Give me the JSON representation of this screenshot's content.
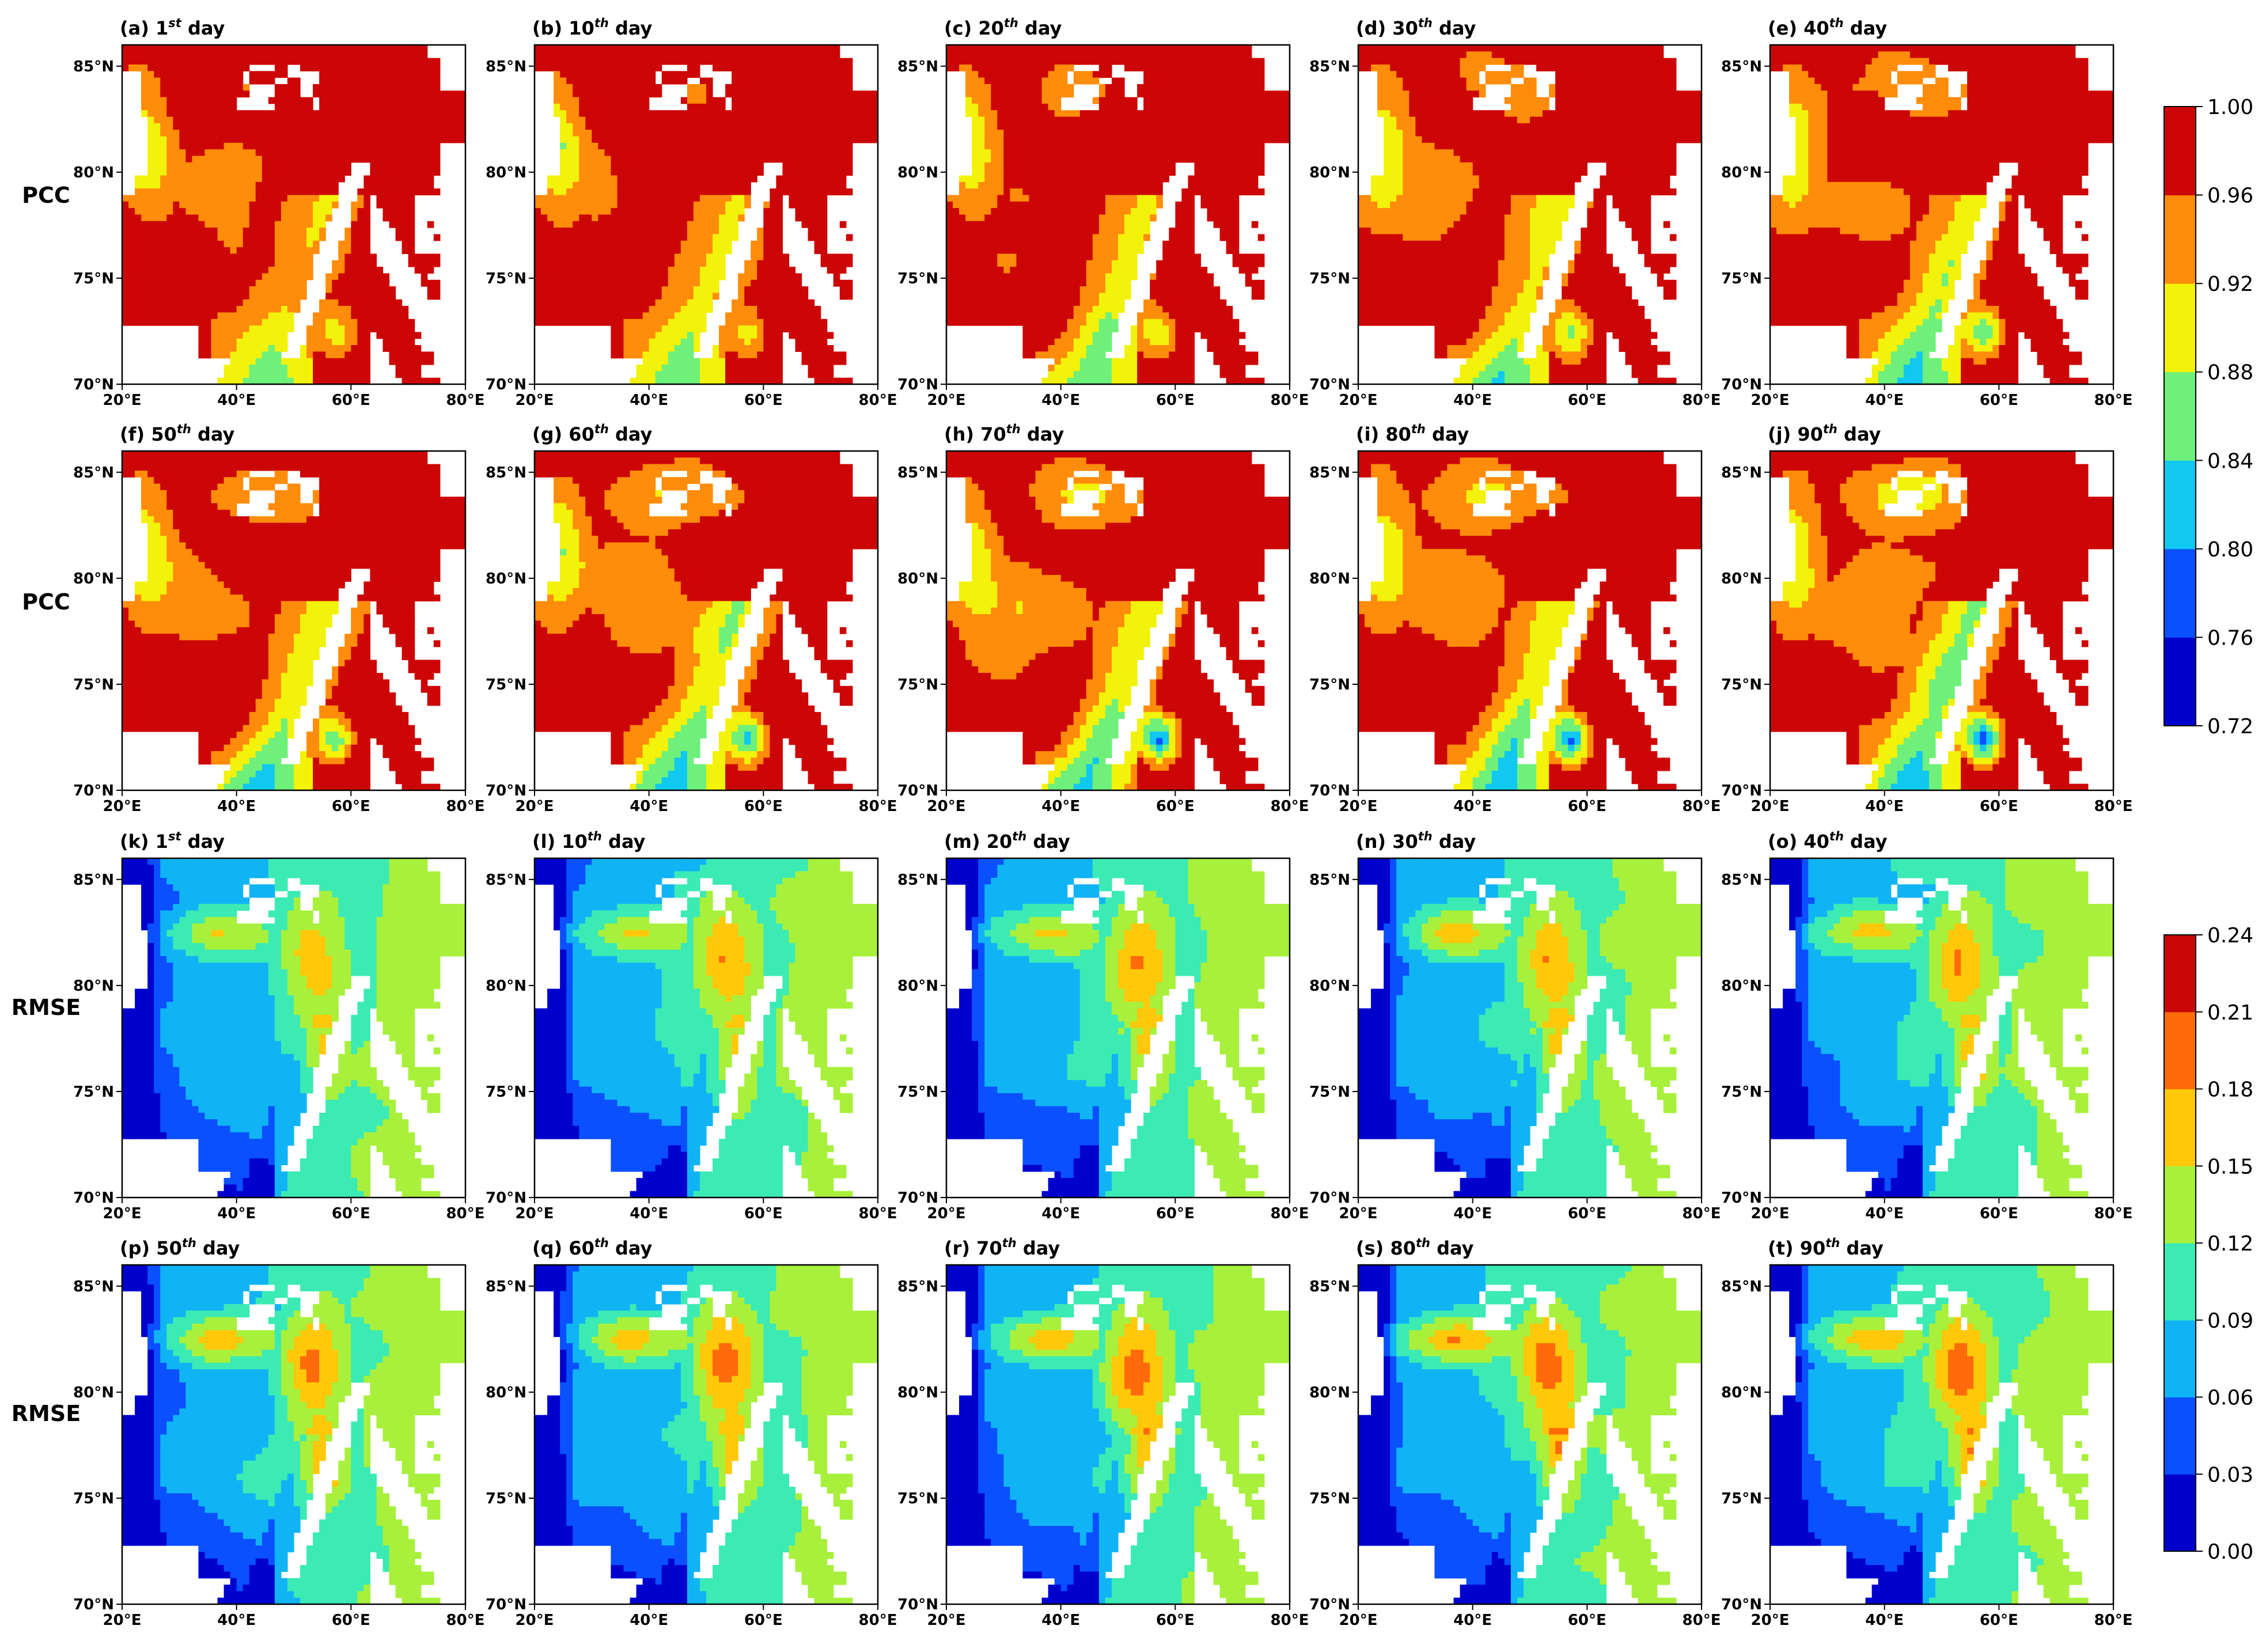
{
  "chart_data": {
    "type": "heatmap",
    "description_rows": [
      "PCC",
      "PCC",
      "RMSE",
      "RMSE"
    ],
    "row_labels": [
      "PCC",
      "PCC",
      "RMSE",
      "RMSE"
    ],
    "xticks": [
      "20°E",
      "40°E",
      "60°E",
      "80°E"
    ],
    "yticks": [
      "70°N",
      "75°N",
      "80°N",
      "85°N"
    ],
    "xlim": [
      20,
      80
    ],
    "ylim": [
      70,
      86
    ],
    "panels": [
      {
        "letter": "(a)",
        "num": "1",
        "sup": "st",
        "word": "day",
        "metric": "PCC"
      },
      {
        "letter": "(b)",
        "num": "10",
        "sup": "th",
        "word": "day",
        "metric": "PCC"
      },
      {
        "letter": "(c)",
        "num": "20",
        "sup": "th",
        "word": "day",
        "metric": "PCC"
      },
      {
        "letter": "(d)",
        "num": "30",
        "sup": "th",
        "word": "day",
        "metric": "PCC"
      },
      {
        "letter": "(e)",
        "num": "40",
        "sup": "th",
        "word": "day",
        "metric": "PCC"
      },
      {
        "letter": "(f)",
        "num": "50",
        "sup": "th",
        "word": "day",
        "metric": "PCC"
      },
      {
        "letter": "(g)",
        "num": "60",
        "sup": "th",
        "word": "day",
        "metric": "PCC"
      },
      {
        "letter": "(h)",
        "num": "70",
        "sup": "th",
        "word": "day",
        "metric": "PCC"
      },
      {
        "letter": "(i)",
        "num": "80",
        "sup": "th",
        "word": "day",
        "metric": "PCC"
      },
      {
        "letter": "(j)",
        "num": "90",
        "sup": "th",
        "word": "day",
        "metric": "PCC"
      },
      {
        "letter": "(k)",
        "num": "1",
        "sup": "st",
        "word": "day",
        "metric": "RMSE"
      },
      {
        "letter": "(l)",
        "num": "10",
        "sup": "th",
        "word": "day",
        "metric": "RMSE"
      },
      {
        "letter": "(m)",
        "num": "20",
        "sup": "th",
        "word": "day",
        "metric": "RMSE"
      },
      {
        "letter": "(n)",
        "num": "30",
        "sup": "th",
        "word": "day",
        "metric": "RMSE"
      },
      {
        "letter": "(o)",
        "num": "40",
        "sup": "th",
        "word": "day",
        "metric": "RMSE"
      },
      {
        "letter": "(p)",
        "num": "50",
        "sup": "th",
        "word": "day",
        "metric": "RMSE"
      },
      {
        "letter": "(q)",
        "num": "60",
        "sup": "th",
        "word": "day",
        "metric": "RMSE"
      },
      {
        "letter": "(r)",
        "num": "70",
        "sup": "th",
        "word": "day",
        "metric": "RMSE"
      },
      {
        "letter": "(s)",
        "num": "80",
        "sup": "th",
        "word": "day",
        "metric": "RMSE"
      },
      {
        "letter": "(t)",
        "num": "90",
        "sup": "th",
        "word": "day",
        "metric": "RMSE"
      }
    ],
    "colorbars": [
      {
        "metric": "PCC",
        "ticks": [
          "1.00",
          "0.96",
          "0.92",
          "0.88",
          "0.84",
          "0.80",
          "0.76",
          "0.72"
        ],
        "levels": [
          0.72,
          0.76,
          0.8,
          0.84,
          0.88,
          0.92,
          0.96,
          1.0
        ],
        "colors": [
          "#0000cd",
          "#0a50ff",
          "#10c8f0",
          "#6ef07a",
          "#f2f20a",
          "#ff8c0a",
          "#cc0606"
        ]
      },
      {
        "metric": "RMSE",
        "ticks": [
          "0.24",
          "0.21",
          "0.18",
          "0.15",
          "0.12",
          "0.09",
          "0.06",
          "0.03",
          "0.00"
        ],
        "levels": [
          0.0,
          0.03,
          0.06,
          0.09,
          0.12,
          0.15,
          0.18,
          0.21,
          0.24
        ],
        "colors": [
          "#0000cd",
          "#0a50ff",
          "#10b4f5",
          "#3ceab4",
          "#a8f03c",
          "#ffc80a",
          "#ff6a0a",
          "#c80606"
        ]
      }
    ]
  }
}
